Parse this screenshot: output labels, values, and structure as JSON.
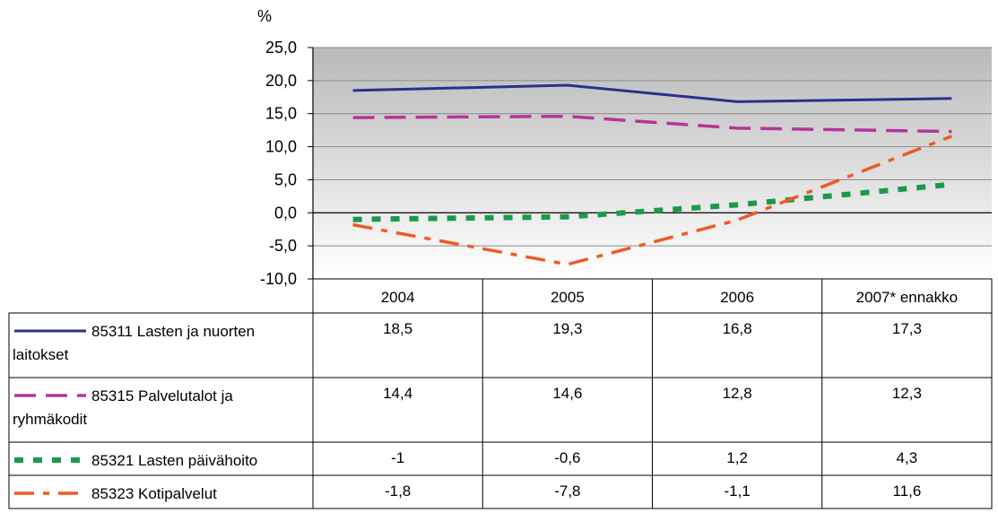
{
  "chart_data": {
    "type": "line",
    "unit_label": "%",
    "categories": [
      "2004",
      "2005",
      "2006",
      "2007* ennakko"
    ],
    "ylim": [
      -10,
      25
    ],
    "yticks": [
      "25,0",
      "20,0",
      "15,0",
      "10,0",
      "5,0",
      "0,0",
      "-5,0",
      "-10,0"
    ],
    "ytick_values": [
      25,
      20,
      15,
      10,
      5,
      0,
      -5,
      -10
    ],
    "grid": true,
    "legend": "data-table-below",
    "series": [
      {
        "name_lines": [
          "85311 Lasten ja nuorten",
          "laitokset"
        ],
        "values": [
          18.5,
          19.3,
          16.8,
          17.3
        ],
        "labels": [
          "18,5",
          "19,3",
          "16,8",
          "17,3"
        ],
        "color": "#2b2f8f",
        "dash": "solid"
      },
      {
        "name_lines": [
          "85315 Palvelutalot ja",
          "ryhmäkodit"
        ],
        "values": [
          14.4,
          14.6,
          12.8,
          12.3
        ],
        "labels": [
          "14,4",
          "14,6",
          "12,8",
          "12,3"
        ],
        "color": "#b5359a",
        "dash": "long-dash"
      },
      {
        "name_lines": [
          "85321 Lasten päivähoito"
        ],
        "values": [
          -1,
          -0.6,
          1.2,
          4.3
        ],
        "labels": [
          "-1",
          "-0,6",
          "1,2",
          "4,3"
        ],
        "color": "#1a9a4a",
        "dash": "square-dot"
      },
      {
        "name_lines": [
          "85323 Kotipalvelut"
        ],
        "values": [
          -1.8,
          -7.8,
          -1.1,
          11.6
        ],
        "labels": [
          "-1,8",
          "-7,8",
          "-1,1",
          "11,6"
        ],
        "color": "#ee5a24",
        "dash": "dash-dot"
      }
    ]
  }
}
